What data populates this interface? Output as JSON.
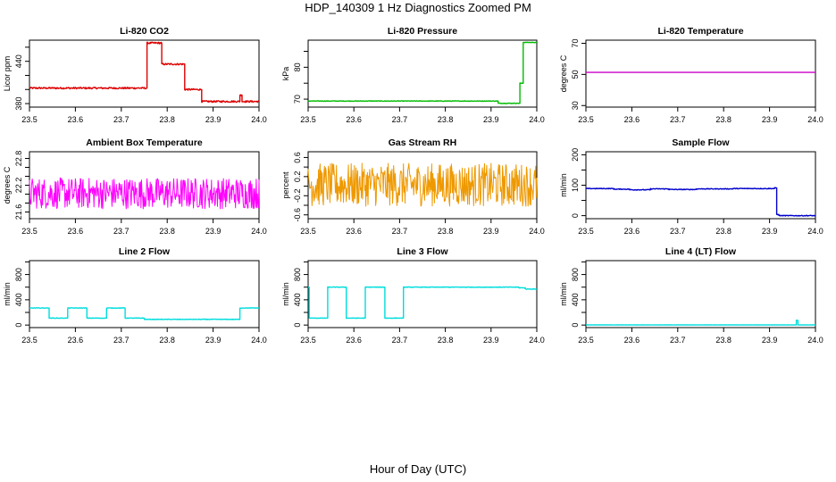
{
  "figure": {
    "title": "HDP_140309  1 Hz Diagnostics Zoomed PM",
    "xlabel": "Hour of Day (UTC)"
  },
  "chart_data": [
    {
      "type": "line",
      "title": "Li-820 CO2",
      "ylabel": "Licor ppm",
      "color": "#dd0000",
      "xlim": [
        23.5,
        24.0
      ],
      "xticks": [
        23.5,
        23.6,
        23.7,
        23.8,
        23.9,
        24.0
      ],
      "ylim": [
        375,
        470
      ],
      "yticks": [
        380,
        400,
        420,
        440,
        460
      ],
      "yticklabels": [
        "380",
        "",
        "",
        "440",
        ""
      ],
      "noise": 1.2,
      "steps": [
        [
          23.5,
          402
        ],
        [
          23.755,
          466
        ],
        [
          23.788,
          436
        ],
        [
          23.837,
          400
        ],
        [
          23.875,
          383
        ],
        [
          23.958,
          392
        ],
        [
          23.962,
          383
        ]
      ]
    },
    {
      "type": "line",
      "title": "Li-820 Pressure",
      "ylabel": "kPa",
      "color": "#00bb00",
      "xlim": [
        23.5,
        24.0
      ],
      "xticks": [
        23.5,
        23.6,
        23.7,
        23.8,
        23.9,
        24.0
      ],
      "ylim": [
        67.5,
        88.5
      ],
      "yticks": [
        70,
        75,
        80,
        85
      ],
      "yticklabels": [
        "70",
        "",
        "80",
        ""
      ],
      "noise": 0.08,
      "steps": [
        [
          23.5,
          69.4
        ],
        [
          23.915,
          68.7
        ],
        [
          23.955,
          68.7
        ],
        [
          23.962,
          75.0
        ],
        [
          23.97,
          87.8
        ]
      ]
    },
    {
      "type": "line",
      "title": "Li-820 Temperature",
      "ylabel": "degrees C",
      "color": "#cc00cc",
      "xlim": [
        23.5,
        24.0
      ],
      "xticks": [
        23.5,
        23.6,
        23.7,
        23.8,
        23.9,
        24.0
      ],
      "ylim": [
        29,
        72
      ],
      "yticks": [
        30,
        50,
        70
      ],
      "yticklabels": [
        "30",
        "50",
        "70"
      ],
      "noise": 0,
      "steps": [
        [
          23.5,
          51.3
        ]
      ]
    },
    {
      "type": "line",
      "title": "Ambient Box Temperature",
      "ylabel": "degrees C",
      "color": "#ff00ff",
      "xlim": [
        23.5,
        24.0
      ],
      "xticks": [
        23.5,
        23.6,
        23.7,
        23.8,
        23.9,
        24.0
      ],
      "ylim": [
        21.45,
        22.95
      ],
      "yticks": [
        21.6,
        21.8,
        22.0,
        22.2,
        22.4,
        22.6,
        22.8
      ],
      "yticklabels": [
        "21.6",
        "",
        "",
        "22.2",
        "",
        "",
        "22.8"
      ],
      "noise": 0.35,
      "steps": [
        [
          23.5,
          22.02
        ]
      ]
    },
    {
      "type": "line",
      "title": "Gas Stream RH",
      "ylabel": "percent",
      "color": "#ee9900",
      "xlim": [
        23.5,
        24.0
      ],
      "xticks": [
        23.5,
        23.6,
        23.7,
        23.8,
        23.9,
        24.0
      ],
      "ylim": [
        -0.68,
        0.72
      ],
      "yticks": [
        -0.6,
        -0.4,
        -0.2,
        0.0,
        0.2,
        0.4,
        0.6
      ],
      "yticklabels": [
        "-0.6",
        "",
        "-0.2",
        "",
        "0.2",
        "",
        "0.6"
      ],
      "noise": 0.45,
      "steps": [
        [
          23.5,
          0.03
        ]
      ]
    },
    {
      "type": "line",
      "title": "Sample Flow",
      "ylabel": "ml/min",
      "color": "#0000cc",
      "xlim": [
        23.5,
        24.0
      ],
      "xticks": [
        23.5,
        23.6,
        23.7,
        23.8,
        23.9,
        24.0
      ],
      "ylim": [
        -10,
        210
      ],
      "yticks": [
        0,
        50,
        100,
        150,
        200
      ],
      "yticklabels": [
        "0",
        "",
        "100",
        "",
        "200"
      ],
      "noise": 1.2,
      "steps": [
        [
          23.5,
          89
        ],
        [
          23.56,
          87
        ],
        [
          23.595,
          85
        ],
        [
          23.64,
          88
        ],
        [
          23.68,
          86
        ],
        [
          23.74,
          88
        ],
        [
          23.82,
          89
        ],
        [
          23.91,
          91
        ],
        [
          23.915,
          4
        ],
        [
          23.92,
          0
        ]
      ]
    },
    {
      "type": "line",
      "title": "Line 2 Flow",
      "ylabel": "ml/min",
      "color": "#00dddd",
      "xlim": [
        23.5,
        24.0
      ],
      "xticks": [
        23.5,
        23.6,
        23.7,
        23.8,
        23.9,
        24.0
      ],
      "ylim": [
        -40,
        1020
      ],
      "yticks": [
        0,
        200,
        400,
        600,
        800,
        1000
      ],
      "yticklabels": [
        "0",
        "",
        "400",
        "",
        "800",
        ""
      ],
      "noise": 4,
      "steps": [
        [
          23.5,
          270
        ],
        [
          23.542,
          110
        ],
        [
          23.583,
          270
        ],
        [
          23.625,
          110
        ],
        [
          23.667,
          270
        ],
        [
          23.708,
          110
        ],
        [
          23.75,
          90
        ],
        [
          23.958,
          270
        ]
      ]
    },
    {
      "type": "line",
      "title": "Line 3 Flow",
      "ylabel": "ml/min",
      "color": "#00dddd",
      "xlim": [
        23.5,
        24.0
      ],
      "xticks": [
        23.5,
        23.6,
        23.7,
        23.8,
        23.9,
        24.0
      ],
      "ylim": [
        -40,
        1020
      ],
      "yticks": [
        0,
        200,
        400,
        600,
        800,
        1000
      ],
      "yticklabels": [
        "0",
        "",
        "400",
        "",
        "800",
        ""
      ],
      "noise": 4,
      "steps": [
        [
          23.5,
          600
        ],
        [
          23.502,
          110
        ],
        [
          23.542,
          600
        ],
        [
          23.583,
          110
        ],
        [
          23.625,
          600
        ],
        [
          23.667,
          110
        ],
        [
          23.708,
          600
        ],
        [
          23.96,
          590
        ],
        [
          23.975,
          570
        ]
      ]
    },
    {
      "type": "line",
      "title": "Line 4 (LT) Flow",
      "ylabel": "ml/min",
      "color": "#00dddd",
      "xlim": [
        23.5,
        24.0
      ],
      "xticks": [
        23.5,
        23.6,
        23.7,
        23.8,
        23.9,
        24.0
      ],
      "ylim": [
        -40,
        1020
      ],
      "yticks": [
        0,
        200,
        400,
        600,
        800,
        1000
      ],
      "yticklabels": [
        "0",
        "",
        "400",
        "",
        "800",
        ""
      ],
      "noise": 1,
      "steps": [
        [
          23.5,
          2
        ],
        [
          23.958,
          75
        ],
        [
          23.961,
          2
        ]
      ]
    }
  ]
}
